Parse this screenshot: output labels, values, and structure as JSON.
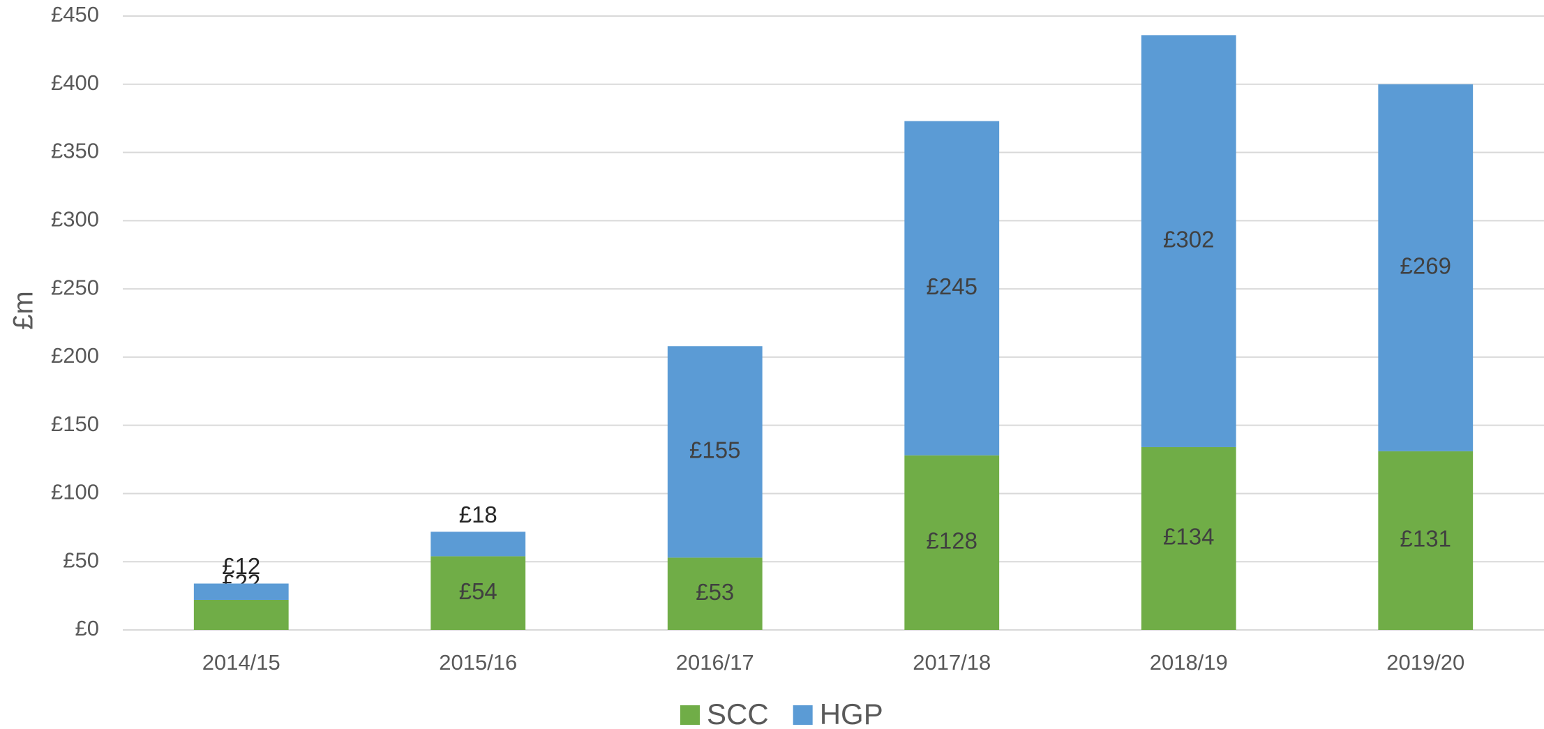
{
  "chart_data": {
    "type": "stacked_bar",
    "y_label": "£m",
    "categories": [
      "2014/15",
      "2015/16",
      "2016/17",
      "2017/18",
      "2018/19",
      "2019/20"
    ],
    "series": [
      {
        "name": "SCC",
        "color": "#70ad47",
        "values": [
          22,
          54,
          53,
          128,
          134,
          131
        ],
        "value_labels": [
          "£22",
          "£54",
          "£53",
          "£128",
          "£134",
          "£131"
        ]
      },
      {
        "name": "HGP",
        "color": "#5b9bd5",
        "values": [
          12,
          18,
          155,
          245,
          302,
          269
        ],
        "value_labels": [
          "£12",
          "£18",
          "£155",
          "£245",
          "£302",
          "£269"
        ]
      }
    ],
    "ylim": [
      0,
      450
    ],
    "yticks": [
      {
        "value": 0,
        "label": "£0"
      },
      {
        "value": 50,
        "label": "£50"
      },
      {
        "value": 100,
        "label": "£100"
      },
      {
        "value": 150,
        "label": "£150"
      },
      {
        "value": 200,
        "label": "£200"
      },
      {
        "value": 250,
        "label": "£250"
      },
      {
        "value": 300,
        "label": "£300"
      },
      {
        "value": 350,
        "label": "£350"
      },
      {
        "value": 400,
        "label": "£400"
      },
      {
        "value": 450,
        "label": "£450"
      }
    ],
    "grid": true,
    "legend": "bottom"
  }
}
